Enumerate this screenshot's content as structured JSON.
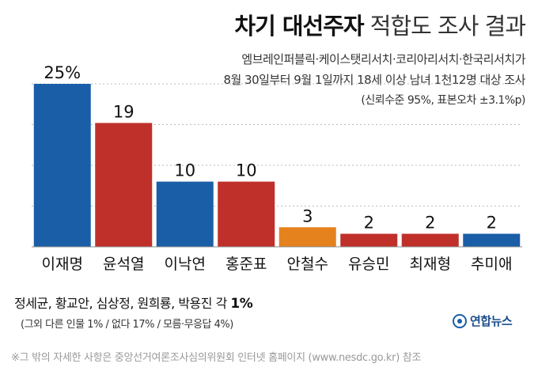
{
  "title_bold": "차기 대선주자",
  "title_light": "적합도 조사 결과",
  "subtitle_line1": "엠브레인퍼블릭·케이스탯리서치·코리아리서치·한국리서치가",
  "subtitle_line2": "8월 30일부터 9월 1일까지 18세 이상 남녀 1천12명 대상 조사",
  "subtitle_line3": "(신뢰수준 95%, 표본오차 ±3.1%p)",
  "names_text": "정세균, 황교안, 심상정, 원희룡, 박용진 각 ",
  "names_value": "1%",
  "others_text": "(그외 다른 인물 1% / 없다 17% / 모름·무응답 4%)",
  "source_note": "※그 밖의 자세한 사항은 중앙선거여론조사심의위원회 인터넷 홈페이지 (www.nesdc.go.kr) 참조",
  "logo_text": "연합뉴스",
  "chart_data": {
    "type": "bar",
    "categories": [
      "이재명",
      "윤석열",
      "이낙연",
      "홍준표",
      "안철수",
      "유승민",
      "최재형",
      "추미애"
    ],
    "values": [
      25,
      19,
      10,
      10,
      3,
      2,
      2,
      2
    ],
    "value_labels": [
      "25%",
      "19",
      "10",
      "10",
      "3",
      "2",
      "2",
      "2"
    ],
    "colors": [
      "#1a5ea7",
      "#c0302a",
      "#1a5ea7",
      "#c0302a",
      "#e6821e",
      "#c0302a",
      "#c0302a",
      "#1a5ea7"
    ],
    "ylim": [
      0,
      25
    ],
    "grid": true
  }
}
